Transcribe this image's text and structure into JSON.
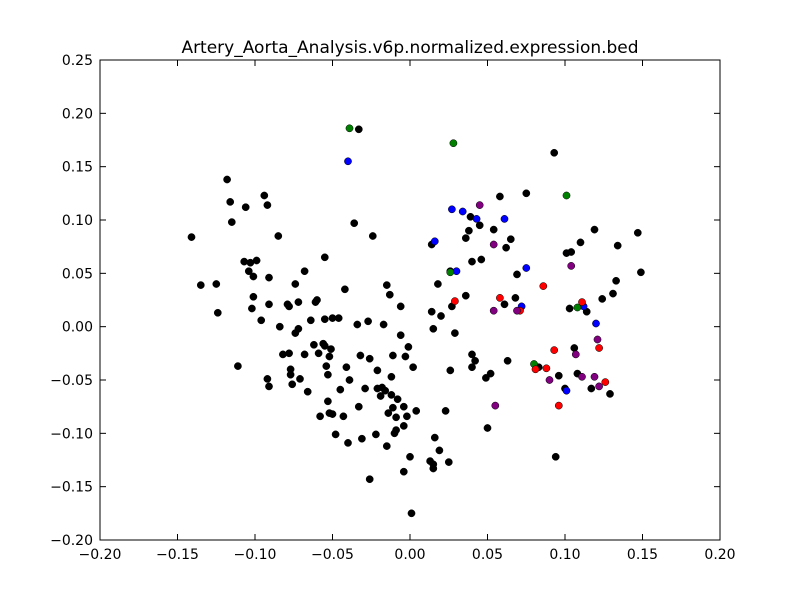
{
  "chart_data": {
    "type": "scatter",
    "title": "Artery_Aorta_Analysis.v6p.normalized.expression.bed",
    "xlabel": "",
    "ylabel": "",
    "xlim": [
      -0.2,
      0.2
    ],
    "ylim": [
      -0.2,
      0.25
    ],
    "x_ticks": [
      "−0.20",
      "−0.15",
      "−0.10",
      "−0.05",
      "0.00",
      "0.05",
      "0.10",
      "0.15",
      "0.20"
    ],
    "x_tick_values": [
      -0.2,
      -0.15,
      -0.1,
      -0.05,
      0.0,
      0.05,
      0.1,
      0.15,
      0.2
    ],
    "y_ticks": [
      "−0.20",
      "−0.15",
      "−0.10",
      "−0.05",
      "0.00",
      "0.05",
      "0.10",
      "0.15",
      "0.20",
      "0.25"
    ],
    "y_tick_values": [
      -0.2,
      -0.15,
      -0.1,
      -0.05,
      0.0,
      0.05,
      0.1,
      0.15,
      0.2,
      0.25
    ],
    "grid": false,
    "legend": "none",
    "colors": {
      "black": "#000000",
      "blue": "#0000ff",
      "green": "#008000",
      "red": "#ff0000",
      "purple": "#800080"
    },
    "series": [
      {
        "color": "black",
        "points": [
          [
            -0.141,
            0.084
          ],
          [
            -0.135,
            0.039
          ],
          [
            -0.125,
            0.04
          ],
          [
            -0.124,
            0.013
          ],
          [
            -0.118,
            0.138
          ],
          [
            -0.116,
            0.117
          ],
          [
            -0.115,
            0.098
          ],
          [
            -0.111,
            -0.037
          ],
          [
            -0.107,
            0.061
          ],
          [
            -0.106,
            0.112
          ],
          [
            -0.104,
            0.052
          ],
          [
            -0.103,
            0.06
          ],
          [
            -0.102,
            0.017
          ],
          [
            -0.101,
            0.047
          ],
          [
            -0.101,
            0.028
          ],
          [
            -0.099,
            0.062
          ],
          [
            -0.096,
            0.006
          ],
          [
            -0.094,
            0.123
          ],
          [
            -0.092,
            0.114
          ],
          [
            -0.091,
            0.046
          ],
          [
            -0.091,
            0.021
          ],
          [
            -0.092,
            -0.049
          ],
          [
            -0.091,
            -0.056
          ],
          [
            -0.085,
            0.085
          ],
          [
            -0.084,
            0.0
          ],
          [
            -0.082,
            -0.026
          ],
          [
            -0.079,
            0.021
          ],
          [
            -0.078,
            -0.025
          ],
          [
            -0.078,
            0.019
          ],
          [
            -0.077,
            -0.04
          ],
          [
            -0.077,
            -0.045
          ],
          [
            -0.076,
            -0.054
          ],
          [
            -0.074,
            0.04
          ],
          [
            -0.074,
            -0.006
          ],
          [
            -0.072,
            -0.002
          ],
          [
            -0.072,
            0.023
          ],
          [
            -0.071,
            -0.049
          ],
          [
            -0.068,
            0.052
          ],
          [
            -0.068,
            -0.026
          ],
          [
            -0.066,
            -0.061
          ],
          [
            -0.064,
            0.006
          ],
          [
            -0.062,
            -0.017
          ],
          [
            -0.061,
            0.023
          ],
          [
            -0.06,
            0.025
          ],
          [
            -0.059,
            -0.025
          ],
          [
            -0.058,
            -0.084
          ],
          [
            -0.056,
            -0.016
          ],
          [
            -0.055,
            0.065
          ],
          [
            -0.055,
            0.007
          ],
          [
            -0.055,
            -0.018
          ],
          [
            -0.054,
            -0.037
          ],
          [
            -0.053,
            -0.045
          ],
          [
            -0.053,
            -0.07
          ],
          [
            -0.052,
            -0.028
          ],
          [
            -0.052,
            -0.081
          ],
          [
            -0.051,
            -0.021
          ],
          [
            -0.05,
            -0.082
          ],
          [
            -0.05,
            0.008
          ],
          [
            -0.048,
            -0.101
          ],
          [
            -0.046,
            0.008
          ],
          [
            -0.045,
            -0.059
          ],
          [
            -0.043,
            -0.084
          ],
          [
            -0.042,
            0.035
          ],
          [
            -0.041,
            -0.038
          ],
          [
            -0.04,
            -0.109
          ],
          [
            -0.039,
            -0.05
          ],
          [
            -0.036,
            0.097
          ],
          [
            -0.033,
            0.185
          ],
          [
            -0.034,
            0.002
          ],
          [
            -0.033,
            -0.075
          ],
          [
            -0.032,
            -0.027
          ],
          [
            -0.031,
            -0.105
          ],
          [
            -0.029,
            -0.058
          ],
          [
            -0.027,
            0.005
          ],
          [
            -0.026,
            -0.143
          ],
          [
            -0.026,
            -0.03
          ],
          [
            -0.024,
            0.085
          ],
          [
            -0.022,
            -0.101
          ],
          [
            -0.021,
            -0.041
          ],
          [
            -0.021,
            -0.058
          ],
          [
            -0.019,
            -0.065
          ],
          [
            -0.018,
            -0.057
          ],
          [
            -0.017,
            0.002
          ],
          [
            -0.016,
            -0.06
          ],
          [
            -0.015,
            0.039
          ],
          [
            -0.015,
            -0.112
          ],
          [
            -0.014,
            -0.081
          ],
          [
            -0.013,
            0.03
          ],
          [
            -0.012,
            -0.047
          ],
          [
            -0.012,
            -0.064
          ],
          [
            -0.011,
            -0.076
          ],
          [
            -0.011,
            -0.027
          ],
          [
            -0.01,
            -0.1
          ],
          [
            -0.009,
            -0.085
          ],
          [
            -0.009,
            -0.097
          ],
          [
            -0.008,
            -0.068
          ],
          [
            -0.006,
            -0.008
          ],
          [
            -0.006,
            0.019
          ],
          [
            -0.004,
            -0.075
          ],
          [
            -0.004,
            -0.093
          ],
          [
            -0.004,
            -0.136
          ],
          [
            -0.003,
            -0.028
          ],
          [
            -0.002,
            -0.084
          ],
          [
            -0.001,
            -0.019
          ],
          [
            0.0,
            -0.122
          ],
          [
            0.001,
            -0.175
          ],
          [
            0.002,
            -0.038
          ],
          [
            0.004,
            -0.079
          ],
          [
            0.013,
            -0.126
          ],
          [
            0.014,
            0.077
          ],
          [
            0.014,
            0.014
          ],
          [
            0.015,
            -0.002
          ],
          [
            0.015,
            -0.129
          ],
          [
            0.015,
            -0.133
          ],
          [
            0.016,
            -0.104
          ],
          [
            0.018,
            0.04
          ],
          [
            0.019,
            -0.116
          ],
          [
            0.02,
            0.01
          ],
          [
            0.023,
            -0.079
          ],
          [
            0.025,
            -0.127
          ],
          [
            0.026,
            0.052
          ],
          [
            0.026,
            -0.041
          ],
          [
            0.027,
            0.019
          ],
          [
            0.029,
            -0.006
          ],
          [
            0.036,
            0.083
          ],
          [
            0.036,
            0.029
          ],
          [
            0.038,
            0.09
          ],
          [
            0.039,
            0.103
          ],
          [
            0.04,
            0.061
          ],
          [
            0.04,
            -0.026
          ],
          [
            0.04,
            -0.038
          ],
          [
            0.042,
            -0.032
          ],
          [
            0.045,
            0.095
          ],
          [
            0.046,
            0.063
          ],
          [
            0.049,
            -0.048
          ],
          [
            0.05,
            -0.095
          ],
          [
            0.052,
            -0.044
          ],
          [
            0.054,
            0.091
          ],
          [
            0.058,
            0.122
          ],
          [
            0.061,
            0.021
          ],
          [
            0.062,
            0.074
          ],
          [
            0.063,
            -0.032
          ],
          [
            0.065,
            0.082
          ],
          [
            0.068,
            0.027
          ],
          [
            0.069,
            0.049
          ],
          [
            0.075,
            0.125
          ],
          [
            0.083,
            -0.038
          ],
          [
            0.093,
            0.163
          ],
          [
            0.094,
            -0.122
          ],
          [
            0.096,
            -0.046
          ],
          [
            0.1,
            -0.058
          ],
          [
            0.101,
            0.069
          ],
          [
            0.103,
            0.017
          ],
          [
            0.104,
            0.07
          ],
          [
            0.106,
            -0.02
          ],
          [
            0.108,
            -0.044
          ],
          [
            0.11,
            0.079
          ],
          [
            0.114,
            0.014
          ],
          [
            0.117,
            -0.058
          ],
          [
            0.119,
            0.091
          ],
          [
            0.124,
            0.026
          ],
          [
            0.129,
            -0.063
          ],
          [
            0.131,
            0.031
          ],
          [
            0.133,
            0.043
          ],
          [
            0.134,
            0.076
          ],
          [
            0.147,
            0.088
          ],
          [
            0.149,
            0.051
          ]
        ]
      },
      {
        "color": "blue",
        "points": [
          [
            -0.04,
            0.155
          ],
          [
            0.016,
            0.08
          ],
          [
            0.027,
            0.11
          ],
          [
            0.03,
            0.052
          ],
          [
            0.034,
            0.108
          ],
          [
            0.043,
            0.101
          ],
          [
            0.061,
            0.101
          ],
          [
            0.072,
            0.019
          ],
          [
            0.075,
            0.055
          ],
          [
            0.101,
            -0.06
          ],
          [
            0.112,
            0.019
          ],
          [
            0.12,
            0.003
          ]
        ]
      },
      {
        "color": "green",
        "points": [
          [
            -0.039,
            0.186
          ],
          [
            0.026,
            0.051
          ],
          [
            0.028,
            0.172
          ],
          [
            0.08,
            -0.035
          ],
          [
            0.101,
            0.123
          ],
          [
            0.108,
            0.018
          ]
        ]
      },
      {
        "color": "red",
        "points": [
          [
            0.029,
            0.024
          ],
          [
            0.058,
            0.027
          ],
          [
            0.071,
            0.015
          ],
          [
            0.081,
            -0.04
          ],
          [
            0.086,
            0.038
          ],
          [
            0.088,
            -0.039
          ],
          [
            0.093,
            -0.022
          ],
          [
            0.096,
            -0.074
          ],
          [
            0.111,
            0.023
          ],
          [
            0.122,
            -0.02
          ],
          [
            0.126,
            -0.052
          ]
        ]
      },
      {
        "color": "purple",
        "points": [
          [
            0.045,
            0.114
          ],
          [
            0.054,
            0.077
          ],
          [
            0.054,
            0.015
          ],
          [
            0.055,
            -0.074
          ],
          [
            0.069,
            0.015
          ],
          [
            0.09,
            -0.05
          ],
          [
            0.104,
            0.057
          ],
          [
            0.107,
            -0.026
          ],
          [
            0.111,
            -0.047
          ],
          [
            0.119,
            -0.047
          ],
          [
            0.121,
            -0.012
          ],
          [
            0.122,
            -0.056
          ]
        ]
      }
    ]
  }
}
